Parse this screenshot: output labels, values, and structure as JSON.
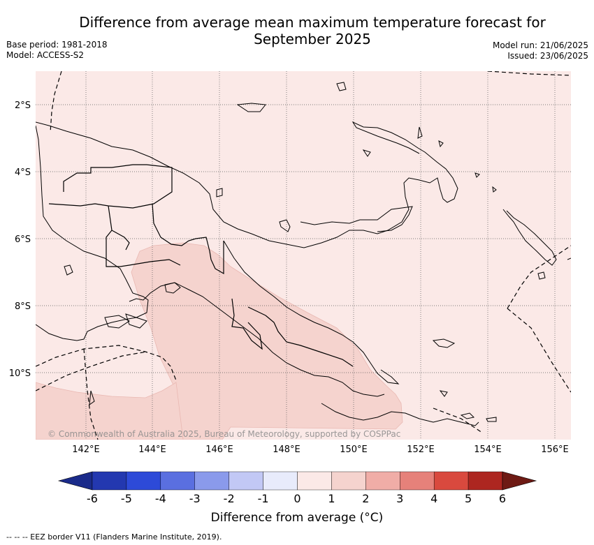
{
  "header": {
    "title_line1": "Difference from average mean maximum temperature forecast for",
    "title_line2": "September 2025",
    "base_period": "Base period: 1981-2018",
    "model": "Model: ACCESS-S2",
    "model_run": "Model run: 21/06/2025",
    "issued": "Issued: 23/06/2025"
  },
  "map": {
    "lat_labels": [
      "2°S",
      "4°S",
      "6°S",
      "8°S",
      "10°S"
    ],
    "lon_labels": [
      "142°E",
      "144°E",
      "146°E",
      "148°E",
      "150°E",
      "152°E",
      "154°E",
      "156°E"
    ],
    "copyright": "© Commonwealth of Australia 2025, Bureau of Meteorology, supported by COSPPac",
    "background_color": "#fbe9e7",
    "anomaly_color": "#f5d3ce"
  },
  "colorbar": {
    "ticks": [
      "-6",
      "-5",
      "-4",
      "-3",
      "-2",
      "-1",
      "0",
      "1",
      "2",
      "3",
      "4",
      "5",
      "6"
    ],
    "colors": [
      "#1a2b8a",
      "#2338b0",
      "#2d4ad8",
      "#5a6fe0",
      "#8a9aeb",
      "#c2c8f5",
      "#e8ebfb",
      "#fbe9e7",
      "#f5d3ce",
      "#f0ada7",
      "#e6817a",
      "#d9493e",
      "#ad2620",
      "#6e1a14"
    ],
    "label": "Difference from average (°C)"
  },
  "footnote": "--  --  -- EEZ border V11 (Flanders Marine Institute, 2019)."
}
